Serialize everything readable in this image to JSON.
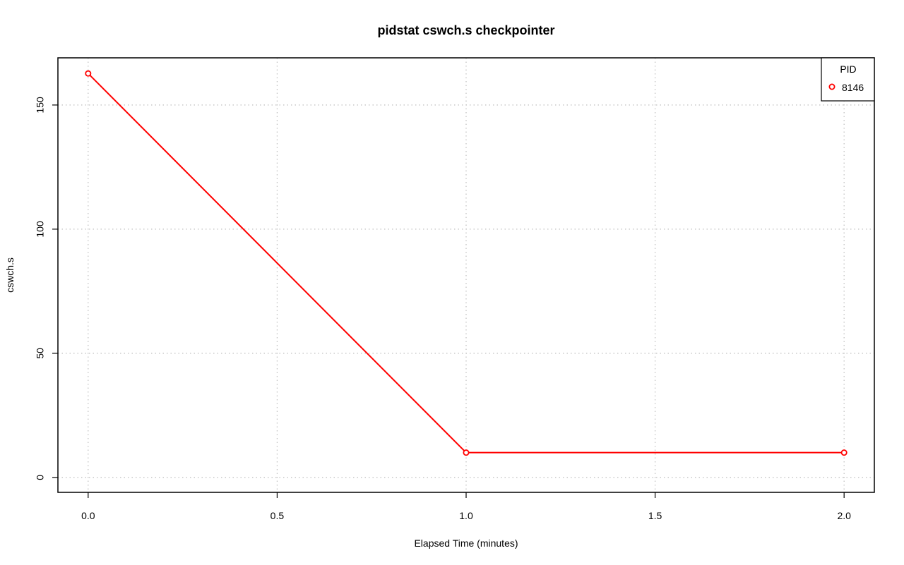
{
  "chart_data": {
    "type": "line",
    "title": "pidstat cswch.s checkpointer",
    "xlabel": "Elapsed Time (minutes)",
    "ylabel": "cswch.s",
    "xlim": [
      -0.08,
      2.08
    ],
    "ylim": [
      -6,
      169
    ],
    "x_ticks": [
      0.0,
      0.5,
      1.0,
      1.5,
      2.0
    ],
    "x_tick_labels": [
      "0.0",
      "0.5",
      "1.0",
      "1.5",
      "2.0"
    ],
    "y_ticks": [
      0,
      50,
      100,
      150
    ],
    "y_tick_labels": [
      "0",
      "50",
      "100",
      "150"
    ],
    "grid": true,
    "legend": {
      "title": "PID",
      "placement": "top-right",
      "entries": [
        "8146"
      ]
    },
    "series": [
      {
        "name": "8146",
        "color": "#ff0000",
        "marker": "open-circle",
        "x": [
          0.0,
          1.0,
          2.0
        ],
        "y": [
          162.7,
          10.0,
          10.0
        ]
      }
    ]
  }
}
